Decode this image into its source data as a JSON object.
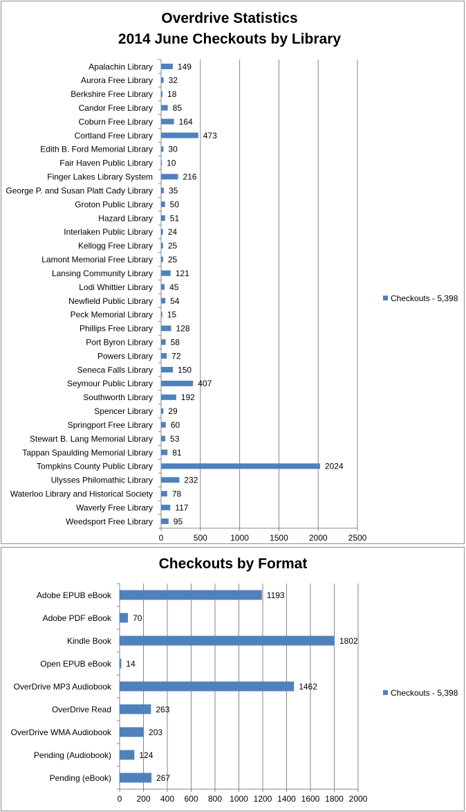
{
  "chart_data": [
    {
      "type": "bar",
      "orientation": "horizontal",
      "title": [
        "Overdrive Statistics",
        "2014 June Checkouts by Library"
      ],
      "categories": [
        "Apalachin Library",
        "Aurora Free Library",
        "Berkshire Free Library",
        "Candor Free Library",
        "Coburn Free Library",
        "Cortland Free Library",
        "Edith B. Ford Memorial Library",
        "Fair Haven Public Library",
        "Finger Lakes Library System",
        "George P. and Susan Platt Cady Library",
        "Groton Public Library",
        "Hazard Library",
        "Interlaken Public Library",
        "Kellogg Free Library",
        "Lamont Memorial Free Library",
        "Lansing Community Library",
        "Lodi Whittier Library",
        "Newfield Public Library",
        "Peck Memorial Library",
        "Phillips Free Library",
        "Port Byron Library",
        "Powers Library",
        "Seneca Falls Library",
        "Seymour Public Library",
        "Southworth Library",
        "Spencer Library",
        "Springport Free Library",
        "Stewart B. Lang Memorial Library",
        "Tappan Spaulding Memorial Library",
        "Tompkins County Public Library",
        "Ulysses Philomathic Library",
        "Waterloo Library and Historical Society",
        "Waverly Free Library",
        "Weedsport Free Library"
      ],
      "series": [
        {
          "name": "Checkouts - 5,398",
          "values": [
            149,
            32,
            18,
            85,
            164,
            473,
            30,
            10,
            216,
            35,
            50,
            51,
            24,
            25,
            25,
            121,
            45,
            54,
            15,
            128,
            58,
            72,
            150,
            407,
            192,
            29,
            60,
            53,
            81,
            2024,
            232,
            78,
            117,
            95
          ]
        }
      ],
      "xlim": [
        0,
        2500
      ],
      "xticks": [
        0,
        500,
        1000,
        1500,
        2000,
        2500
      ],
      "grid": true,
      "legend": "right",
      "data_labels": true,
      "bar_color": "#4f81bd"
    },
    {
      "type": "bar",
      "orientation": "horizontal",
      "title": [
        "Checkouts by Format"
      ],
      "categories": [
        "Adobe EPUB eBook",
        "Adobe PDF eBook",
        "Kindle Book",
        "Open EPUB eBook",
        "OverDrive MP3 Audiobook",
        "OverDrive Read",
        "OverDrive WMA Audiobook",
        "Pending (Audiobook)",
        "Pending (eBook)"
      ],
      "series": [
        {
          "name": "Checkouts - 5,398",
          "values": [
            1193,
            70,
            1802,
            14,
            1462,
            263,
            203,
            124,
            267
          ]
        }
      ],
      "xlim": [
        0,
        2000
      ],
      "xticks": [
        0,
        200,
        400,
        600,
        800,
        1000,
        1200,
        1400,
        1600,
        1800,
        2000
      ],
      "grid": true,
      "legend": "right",
      "data_labels": true,
      "bar_color": "#4f81bd"
    }
  ]
}
